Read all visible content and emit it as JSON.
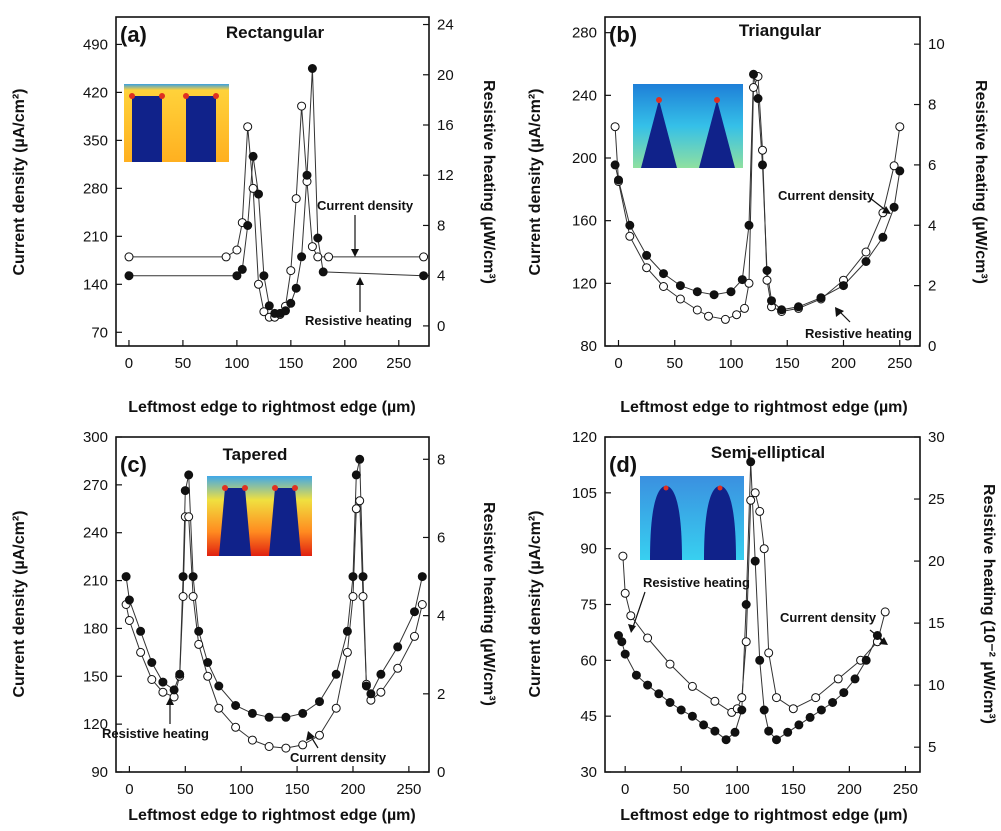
{
  "figure": {
    "x_axis_label": "Leftmost edge to rightmost edge (µm)"
  },
  "chart_data": [
    {
      "panel": "(a)",
      "title": "Rectangular",
      "type": "line",
      "xlabel": "Leftmost edge to rightmost edge (µm)",
      "ylabel_left": "Current density (µA/cm²)",
      "ylabel_right": "Resistive heating (µW/cm³)",
      "x_ticks": [
        0,
        50,
        100,
        150,
        200,
        250
      ],
      "y_left_ticks": [
        70,
        140,
        210,
        280,
        350,
        420,
        490
      ],
      "y_right_ticks": [
        0,
        4,
        8,
        12,
        16,
        20,
        24
      ],
      "xlim": [
        -12,
        278
      ],
      "ylim_left": [
        50,
        530
      ],
      "ylim_right": [
        -1.6,
        24.6
      ],
      "legend": "annotations",
      "annotations": [
        {
          "text": "Current density",
          "series": "Current density",
          "x": 211,
          "y": 180
        },
        {
          "text": "Resistive heating",
          "series": "Resistive heating",
          "x": 211,
          "y": 3.3
        }
      ],
      "series": [
        {
          "name": "Current density",
          "axis": "left",
          "marker": "open-circle",
          "x": [
            0,
            90,
            100,
            105,
            110,
            115,
            120,
            125,
            130,
            135,
            140,
            145,
            150,
            155,
            160,
            165,
            170,
            175,
            185,
            273
          ],
          "y": [
            180,
            180,
            190,
            230,
            370,
            280,
            140,
            100,
            92,
            92,
            96,
            108,
            160,
            265,
            400,
            290,
            195,
            180,
            180,
            180
          ]
        },
        {
          "name": "Resistive heating",
          "axis": "right",
          "marker": "filled-circle",
          "x": [
            0,
            100,
            105,
            110,
            115,
            120,
            125,
            130,
            135,
            140,
            145,
            150,
            155,
            160,
            165,
            170,
            175,
            180,
            273
          ],
          "y": [
            4.0,
            4.0,
            4.5,
            8.0,
            13.5,
            10.5,
            4.0,
            1.6,
            1.0,
            1.0,
            1.2,
            1.8,
            3.0,
            5.5,
            12.0,
            20.5,
            7.0,
            4.3,
            4.0
          ]
        }
      ],
      "inset": "rectangular-geometry"
    },
    {
      "panel": "(b)",
      "title": "Triangular",
      "type": "line",
      "xlabel": "Leftmost edge to rightmost edge (µm)",
      "ylabel_left": "Current density (µA/cm²)",
      "ylabel_right": "Resistive heating (µW/cm³)",
      "x_ticks": [
        0,
        50,
        100,
        150,
        200,
        250
      ],
      "y_left_ticks": [
        80,
        120,
        160,
        200,
        240,
        280
      ],
      "y_right_ticks": [
        0,
        2,
        4,
        6,
        8,
        10
      ],
      "xlim": [
        -12,
        268
      ],
      "ylim_left": [
        80,
        290
      ],
      "ylim_right": [
        0,
        10.9
      ],
      "legend": "annotations",
      "annotations": [
        {
          "text": "Current density",
          "series": "Current density",
          "x": 232,
          "y": 172
        },
        {
          "text": "Resistive heating",
          "series": "Resistive heating",
          "x": 200,
          "y": 1.6
        }
      ],
      "series": [
        {
          "name": "Current density",
          "axis": "left",
          "marker": "open-circle",
          "x": [
            -3,
            0,
            10,
            25,
            40,
            55,
            70,
            80,
            95,
            105,
            112,
            116,
            120,
            124,
            128,
            132,
            136,
            145,
            160,
            180,
            200,
            220,
            235,
            245,
            250
          ],
          "y": [
            220,
            185,
            150,
            130,
            118,
            110,
            103,
            99,
            97,
            100,
            104,
            120,
            245,
            252,
            205,
            122,
            105,
            102,
            104,
            110,
            122,
            140,
            165,
            195,
            220
          ]
        },
        {
          "name": "Resistive heating",
          "axis": "right",
          "marker": "filled-circle",
          "x": [
            -3,
            0,
            10,
            25,
            40,
            55,
            70,
            85,
            100,
            110,
            116,
            120,
            124,
            128,
            132,
            136,
            145,
            160,
            180,
            200,
            220,
            235,
            245,
            250
          ],
          "y": [
            6.0,
            5.5,
            4.0,
            3.0,
            2.4,
            2.0,
            1.8,
            1.7,
            1.8,
            2.2,
            4.0,
            9.0,
            8.2,
            6.0,
            2.5,
            1.5,
            1.2,
            1.3,
            1.6,
            2.0,
            2.8,
            3.6,
            4.6,
            5.8
          ]
        }
      ],
      "inset": "triangular-geometry"
    },
    {
      "panel": "(c)",
      "title": "Tapered",
      "type": "line",
      "xlabel": "Leftmost edge to rightmost edge (µm)",
      "ylabel_left": "Current density (µA/cm²)",
      "ylabel_right": "Resistive heating (µW/cm³)",
      "x_ticks": [
        0,
        50,
        100,
        150,
        200,
        250
      ],
      "y_left_ticks": [
        90,
        120,
        150,
        180,
        210,
        240,
        270,
        300
      ],
      "y_right_ticks": [
        0,
        2,
        4,
        6,
        8
      ],
      "xlim": [
        -12,
        268
      ],
      "ylim_left": [
        90,
        300
      ],
      "ylim_right": [
        0,
        8.57
      ],
      "legend": "annotations",
      "annotations": [
        {
          "text": "Current density",
          "series": "Current density",
          "x": 150,
          "y": 105
        },
        {
          "text": "Resistive heating",
          "series": "Resistive heating",
          "x": 35,
          "y": 1.1
        }
      ],
      "series": [
        {
          "name": "Current density",
          "axis": "left",
          "marker": "open-circle",
          "x": [
            -3,
            0,
            10,
            20,
            30,
            40,
            45,
            48,
            50,
            53,
            57,
            62,
            70,
            80,
            95,
            110,
            125,
            140,
            155,
            170,
            185,
            195,
            200,
            203,
            206,
            209,
            212,
            216,
            225,
            240,
            255,
            262
          ],
          "y": [
            195,
            185,
            165,
            148,
            140,
            137,
            150,
            200,
            250,
            250,
            200,
            170,
            150,
            130,
            118,
            110,
            106,
            105,
            107,
            113,
            130,
            165,
            200,
            255,
            260,
            200,
            145,
            135,
            140,
            155,
            175,
            195
          ]
        },
        {
          "name": "Resistive heating",
          "axis": "right",
          "marker": "filled-circle",
          "x": [
            -3,
            0,
            10,
            20,
            30,
            40,
            45,
            48,
            50,
            53,
            57,
            62,
            70,
            80,
            95,
            110,
            125,
            140,
            155,
            170,
            185,
            195,
            200,
            203,
            206,
            209,
            212,
            216,
            225,
            240,
            255,
            262
          ],
          "y": [
            5.0,
            4.4,
            3.6,
            2.8,
            2.3,
            2.1,
            2.5,
            5.0,
            7.2,
            7.6,
            5.0,
            3.6,
            2.8,
            2.2,
            1.7,
            1.5,
            1.4,
            1.4,
            1.5,
            1.8,
            2.5,
            3.6,
            5.0,
            7.6,
            8.0,
            5.0,
            2.2,
            2.0,
            2.5,
            3.2,
            4.1,
            5.0
          ]
        }
      ],
      "inset": "tapered-geometry"
    },
    {
      "panel": "(d)",
      "title": "Semi-elliptical",
      "type": "line",
      "xlabel": "Leftmost edge to rightmost edge (µm)",
      "ylabel_left": "Current density (µA/cm²)",
      "ylabel_right": "Resistive heating (10⁻² µW/cm³)",
      "x_ticks": [
        0,
        50,
        100,
        150,
        200,
        250
      ],
      "y_left_ticks": [
        30,
        45,
        60,
        75,
        90,
        105,
        120
      ],
      "y_right_ticks": [
        5,
        10,
        15,
        20,
        25,
        30
      ],
      "xlim": [
        -18,
        263
      ],
      "ylim_left": [
        30,
        120
      ],
      "ylim_right": [
        3,
        30
      ],
      "legend": "annotations",
      "annotations": [
        {
          "text": "Current density",
          "series": "Current density",
          "x": 225,
          "y": 64
        },
        {
          "text": "Resistive heating",
          "series": "Resistive heating",
          "x": -2,
          "y": 14.2
        }
      ],
      "series": [
        {
          "name": "Current density",
          "axis": "left",
          "marker": "open-circle",
          "x": [
            -2,
            0,
            5,
            20,
            40,
            60,
            80,
            95,
            100,
            104,
            108,
            112,
            116,
            120,
            124,
            128,
            135,
            150,
            170,
            190,
            210,
            225,
            232
          ],
          "y": [
            88,
            78,
            72,
            66,
            59,
            53,
            49,
            46,
            47,
            50,
            65,
            103,
            105,
            100,
            90,
            62,
            50,
            47,
            50,
            55,
            60,
            65,
            73
          ]
        },
        {
          "name": "Resistive heating",
          "axis": "right",
          "marker": "filled-circle",
          "x": [
            -6,
            -3,
            0,
            10,
            20,
            30,
            40,
            50,
            60,
            70,
            80,
            90,
            98,
            104,
            108,
            112,
            116,
            120,
            124,
            128,
            135,
            145,
            155,
            165,
            175,
            185,
            195,
            205,
            215,
            225
          ],
          "y": [
            14.0,
            13.5,
            12.5,
            10.8,
            10.0,
            9.3,
            8.6,
            8.0,
            7.5,
            6.8,
            6.3,
            5.6,
            6.2,
            8.0,
            16.5,
            28.0,
            20.0,
            12.0,
            8.0,
            6.3,
            5.6,
            6.2,
            6.8,
            7.4,
            8.0,
            8.6,
            9.4,
            10.5,
            12.0,
            14.0
          ]
        }
      ],
      "inset": "semi-elliptical-geometry"
    }
  ]
}
